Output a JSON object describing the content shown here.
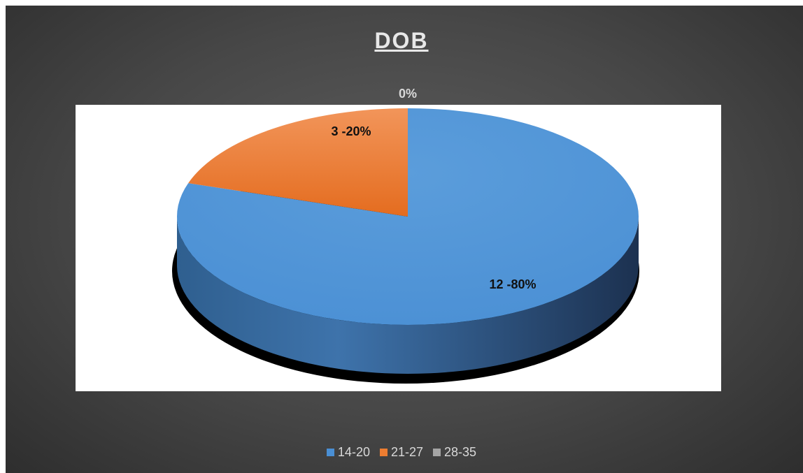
{
  "chart_data": {
    "type": "pie",
    "title": "DOB",
    "categories": [
      "14-20",
      "21-27",
      "28-35"
    ],
    "values": [
      12,
      3,
      0
    ],
    "percentages": [
      80,
      20,
      0
    ],
    "data_labels": [
      "12 -80%",
      "3 -20%",
      "0%"
    ],
    "colors": [
      "#4a8fd4",
      "#ed7d31",
      "#a5a5a5"
    ],
    "legend_position": "bottom",
    "style": "3d"
  }
}
